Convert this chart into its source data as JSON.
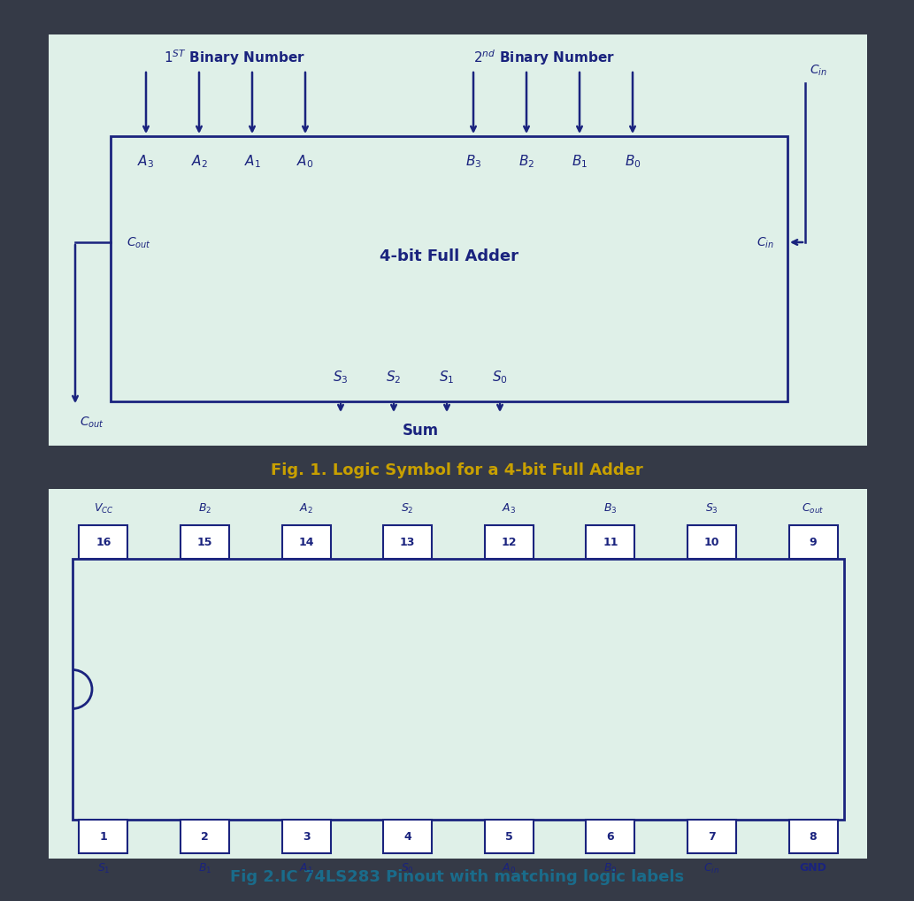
{
  "bg_color": "#353a47",
  "fig1_bg": "#dff0e8",
  "fig2_bg": "#dff0e8",
  "box_color": "#1a237e",
  "arrow_color": "#1a237e",
  "text_color": "#1a237e",
  "fig1_caption": "Fig. 1. Logic Symbol for a 4-bit Full Adder",
  "fig2_caption": "Fig 2.IC 74LS283 Pinout with matching logic labels",
  "fig1_caption_color": "#c8a000",
  "fig2_caption_color": "#1a6b8a",
  "adder_label": "4-bit Full Adder",
  "top_pins": [
    "16",
    "15",
    "14",
    "13",
    "12",
    "11",
    "10",
    "9"
  ],
  "top_labels": [
    "$V_{CC}$",
    "$B_2$",
    "$A_2$",
    "$S_2$",
    "$A_3$",
    "$B_3$",
    "$S_3$",
    "$C_{out}$"
  ],
  "bot_pins": [
    "1",
    "2",
    "3",
    "4",
    "5",
    "6",
    "7",
    "8"
  ],
  "bot_labels": [
    "$S_1$",
    "$B_1$",
    "$A_1$",
    "$S_0$",
    "$A_0$",
    "$B_0$",
    "$C_{in}$",
    "GND"
  ]
}
